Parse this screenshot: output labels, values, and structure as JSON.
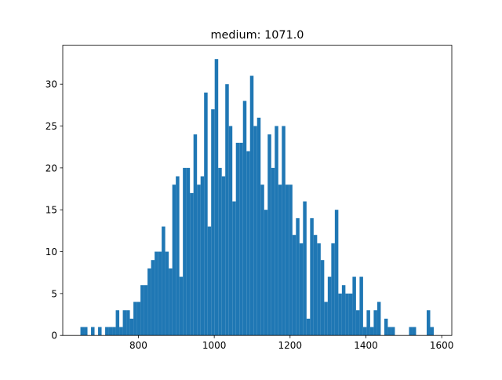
{
  "chart_data": {
    "type": "histogram",
    "title": "medium: 1071.0",
    "color": "#1f77b4",
    "bins": [
      647,
      656.32,
      665.64,
      674.96,
      684.28,
      693.6,
      702.92,
      712.24,
      721.56,
      730.88,
      740.2,
      749.52,
      758.84,
      768.16,
      777.48,
      786.8,
      796.12,
      805.44,
      814.76,
      824.08,
      833.4,
      842.72,
      852.04,
      861.36,
      870.68,
      880,
      889.32,
      898.64,
      907.96,
      917.28,
      926.6,
      935.92,
      945.24,
      954.56,
      963.88,
      973.2,
      982.52,
      991.84,
      1001.16,
      1010.48,
      1019.8,
      1029.12,
      1038.44,
      1047.76,
      1057.08,
      1066.4,
      1075.72,
      1085.04,
      1094.36,
      1103.68,
      1113,
      1122.32,
      1131.64,
      1140.96,
      1150.28,
      1159.6,
      1168.92,
      1178.24,
      1187.56,
      1196.88,
      1206.2,
      1215.52,
      1224.84,
      1234.16,
      1243.48,
      1252.8,
      1262.12,
      1271.44,
      1280.76,
      1290.08,
      1299.4,
      1308.72,
      1318.04,
      1327.36,
      1336.68,
      1346,
      1355.32,
      1364.64,
      1373.96,
      1383.28,
      1392.6,
      1401.92,
      1411.24,
      1420.56,
      1429.88,
      1439.2,
      1448.52,
      1457.84,
      1467.16,
      1476.48,
      1485.8,
      1495.12,
      1504.44,
      1513.76,
      1523.08,
      1532.4,
      1541.72,
      1551.04,
      1560.36,
      1569.68,
      1579
    ],
    "values": [
      1,
      1,
      0,
      1,
      0,
      1,
      0,
      1,
      1,
      1,
      3,
      1,
      3,
      3,
      2,
      4,
      4,
      6,
      6,
      8,
      9,
      10,
      10,
      13,
      10,
      8,
      18,
      19,
      7,
      20,
      20,
      17,
      24,
      18,
      19,
      29,
      13,
      27,
      33,
      20,
      19,
      30,
      25,
      16,
      23,
      23,
      28,
      22,
      31,
      25,
      26,
      18,
      15,
      24,
      20,
      25,
      18,
      25,
      18,
      18,
      12,
      14,
      11,
      16,
      2,
      14,
      12,
      11,
      9,
      4,
      7,
      11,
      15,
      5,
      6,
      5,
      5,
      7,
      3,
      7,
      1,
      3,
      1,
      3,
      4,
      0,
      2,
      1,
      1,
      0,
      0,
      0,
      0,
      1,
      1,
      0,
      0,
      0,
      3,
      1
    ],
    "xlim": [
      600.4,
      1626.6
    ],
    "ylim": [
      0,
      34.65
    ],
    "xticks": [
      800,
      1000,
      1200,
      1400,
      1600
    ],
    "yticks": [
      0,
      5,
      10,
      15,
      20,
      25,
      30
    ]
  }
}
